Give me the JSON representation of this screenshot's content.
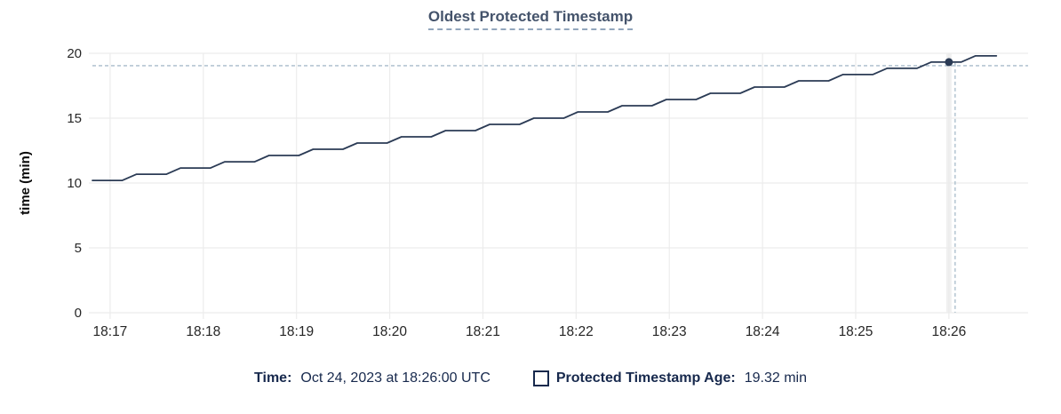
{
  "title": "Oldest Protected Timestamp",
  "colors": {
    "line": "#2b3b55",
    "marker": "#2b3b55",
    "grid": "#ececec",
    "hover_band": "#f0f0f0",
    "crosshair": "#a7bbca",
    "tick_label": "#262626",
    "axis_title": "#0a0a0a",
    "title_text": "#44536b",
    "footer_text": "#17294d"
  },
  "chart_data": {
    "type": "line",
    "title": "Oldest Protected Timestamp",
    "xlabel": "",
    "ylabel": "time (min)",
    "ylim": [
      0,
      20
    ],
    "y_ticks": [
      0,
      5,
      10,
      15,
      20
    ],
    "x_ticks": [
      "18:17",
      "18:18",
      "18:19",
      "18:20",
      "18:21",
      "18:22",
      "18:23",
      "18:24",
      "18:25",
      "18:26"
    ],
    "x_range_minutes": [
      -0.19,
      9.85
    ],
    "grid": true,
    "legend_position": "bottom",
    "series": [
      {
        "name": "Protected Timestamp Age",
        "points": [
          [
            -0.19,
            10.2
          ],
          [
            0.13,
            10.2
          ],
          [
            0.284,
            10.68
          ],
          [
            0.604,
            10.68
          ],
          [
            0.757,
            11.16
          ],
          [
            1.077,
            11.16
          ],
          [
            1.231,
            11.64
          ],
          [
            1.551,
            11.64
          ],
          [
            1.705,
            12.12
          ],
          [
            2.025,
            12.12
          ],
          [
            2.178,
            12.6
          ],
          [
            2.498,
            12.6
          ],
          [
            2.652,
            13.08
          ],
          [
            2.972,
            13.08
          ],
          [
            3.126,
            13.56
          ],
          [
            3.446,
            13.56
          ],
          [
            3.599,
            14.04
          ],
          [
            3.919,
            14.04
          ],
          [
            4.073,
            14.52
          ],
          [
            4.393,
            14.52
          ],
          [
            4.547,
            15.0
          ],
          [
            4.867,
            15.0
          ],
          [
            5.02,
            15.48
          ],
          [
            5.34,
            15.48
          ],
          [
            5.494,
            15.96
          ],
          [
            5.814,
            15.96
          ],
          [
            5.968,
            16.44
          ],
          [
            6.288,
            16.44
          ],
          [
            6.441,
            16.92
          ],
          [
            6.761,
            16.92
          ],
          [
            6.915,
            17.4
          ],
          [
            7.235,
            17.4
          ],
          [
            7.389,
            17.88
          ],
          [
            7.709,
            17.88
          ],
          [
            7.862,
            18.36
          ],
          [
            8.182,
            18.36
          ],
          [
            8.336,
            18.84
          ],
          [
            8.656,
            18.84
          ],
          [
            8.81,
            19.32
          ],
          [
            9.13,
            19.32
          ],
          [
            9.284,
            19.8
          ],
          [
            9.51,
            19.8
          ]
        ]
      }
    ],
    "hover": {
      "x_minutes": 9.0,
      "value": 19.32,
      "time_label": "18:26"
    }
  },
  "footer": {
    "time_label": "Time:",
    "time_value": "Oct 24, 2023 at 18:26:00 UTC",
    "series_label": "Protected Timestamp Age:",
    "series_value": "19.32 min"
  }
}
